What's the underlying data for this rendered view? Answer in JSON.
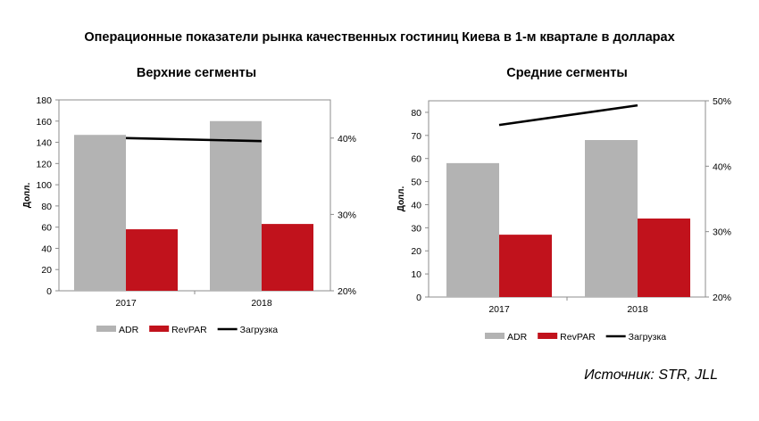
{
  "main_title": "Операционные показатели рынка качественных гостиниц Киева в 1-м квартале в долларах",
  "source": "Источник: STR, JLL",
  "chart_data": [
    {
      "type": "bar",
      "title": "Верхние сегменты",
      "ylabel": "Долл.",
      "categories": [
        "2017",
        "2018"
      ],
      "ylim": [
        0,
        180
      ],
      "yticks": [
        "0",
        "20",
        "40",
        "60",
        "80",
        "100",
        "120",
        "140",
        "160",
        "180"
      ],
      "y2lim": [
        20,
        45
      ],
      "y2ticks": [
        "20%",
        "30%",
        "40%"
      ],
      "series": [
        {
          "name": "ADR",
          "kind": "bar",
          "color": "#b3b3b3",
          "values": [
            147,
            160
          ]
        },
        {
          "name": "RevPAR",
          "kind": "bar",
          "color": "#c1121c",
          "values": [
            58,
            63
          ]
        },
        {
          "name": "Загрузка",
          "kind": "line",
          "axis": "right",
          "color": "#000000",
          "values": [
            40.0,
            39.6
          ]
        }
      ]
    },
    {
      "type": "bar",
      "title": "Средние сегменты",
      "ylabel": "Долл.",
      "categories": [
        "2017",
        "2018"
      ],
      "ylim": [
        0,
        85
      ],
      "yticks": [
        "0",
        "10",
        "20",
        "30",
        "40",
        "50",
        "60",
        "70",
        "80"
      ],
      "y2lim": [
        20,
        50
      ],
      "y2ticks": [
        "20%",
        "30%",
        "40%",
        "50%"
      ],
      "series": [
        {
          "name": "ADR",
          "kind": "bar",
          "color": "#b3b3b3",
          "values": [
            58,
            68
          ]
        },
        {
          "name": "RevPAR",
          "kind": "bar",
          "color": "#c1121c",
          "values": [
            27,
            34
          ]
        },
        {
          "name": "Загрузка",
          "kind": "line",
          "axis": "right",
          "color": "#000000",
          "values": [
            46.3,
            49.3
          ]
        }
      ]
    }
  ]
}
